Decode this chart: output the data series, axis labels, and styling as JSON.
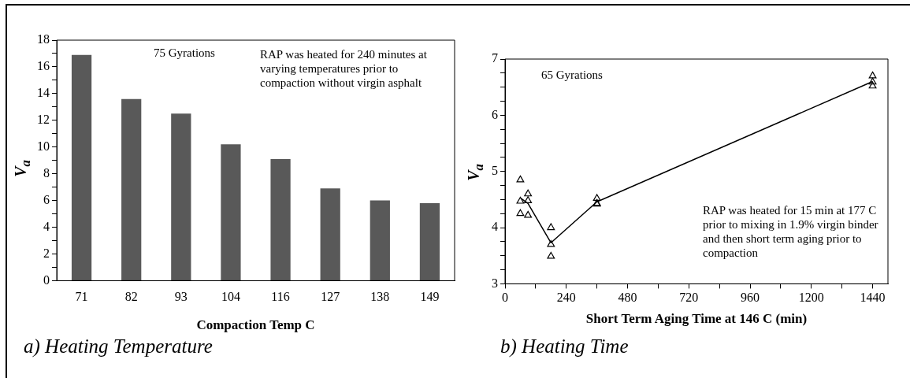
{
  "chart_data": [
    {
      "type": "bar",
      "title": "a) Heating Temperature",
      "xlabel": "Compaction Temp C",
      "ylabel": "V$_{a}$",
      "categories": [
        "71",
        "82",
        "93",
        "104",
        "116",
        "127",
        "138",
        "149"
      ],
      "values": [
        16.9,
        13.6,
        12.5,
        10.2,
        9.1,
        6.9,
        6.0,
        5.8
      ],
      "color": "#595959",
      "ylim": [
        0,
        18
      ],
      "yticks": [
        0,
        {
          "value": 1,
          "label": null
        },
        2,
        {
          "value": 3,
          "label": null
        },
        4,
        {
          "value": 5,
          "label": null
        },
        6,
        {
          "value": 7,
          "label": null
        },
        8,
        {
          "value": 9,
          "label": null
        },
        10,
        {
          "value": 11,
          "label": null
        },
        12,
        {
          "value": 13,
          "label": null
        },
        14,
        {
          "value": 15,
          "label": null
        },
        16,
        {
          "value": 17,
          "label": null
        },
        18
      ],
      "annotations": [
        "75 Gyrations",
        "RAP was heated for 240 minutes at varying temperatures prior to compaction without virgin asphalt"
      ]
    },
    {
      "type": "scatter",
      "title": "b) Heating Time",
      "xlabel": "Short Term Aging Time at 146 C (min)",
      "ylabel": "V$_{a}$",
      "marker": "triangle",
      "series": [
        {
          "color": "#000000",
          "x": [
            60,
            60,
            60,
            90,
            90,
            90,
            180,
            180,
            180,
            360,
            360,
            360,
            1440,
            1440,
            1440
          ],
          "values": [
            4.85,
            4.47,
            4.25,
            4.6,
            4.48,
            4.22,
            4.0,
            3.7,
            3.49,
            4.52,
            4.43,
            4.42,
            6.7,
            6.59,
            6.52
          ]
        },
        {
          "type": "line",
          "color": "#000000",
          "marker": "none",
          "line_style": "solid",
          "x": [
            60,
            90,
            180,
            360,
            1440
          ],
          "values": [
            4.53,
            4.43,
            3.73,
            4.46,
            6.6
          ]
        }
      ],
      "xlim": [
        0,
        1500
      ],
      "xticks": [
        0,
        {
          "value": 120,
          "label": null
        },
        240,
        {
          "value": 360,
          "label": null
        },
        480,
        {
          "value": 600,
          "label": null
        },
        720,
        {
          "value": 840,
          "label": null
        },
        960,
        {
          "value": 1080,
          "label": null
        },
        1200,
        {
          "value": 1320,
          "label": null
        },
        1440
      ],
      "ylim": [
        3,
        7
      ],
      "yticks": [
        3,
        {
          "value": 3.25,
          "label": null
        },
        {
          "value": 3.5,
          "label": null
        },
        {
          "value": 3.75,
          "label": null
        },
        4,
        {
          "value": 4.25,
          "label": null
        },
        {
          "value": 4.5,
          "label": null
        },
        {
          "value": 4.75,
          "label": null
        },
        5,
        {
          "value": 5.25,
          "label": null
        },
        {
          "value": 5.5,
          "label": null
        },
        {
          "value": 5.75,
          "label": null
        },
        6,
        {
          "value": 6.25,
          "label": null
        },
        {
          "value": 6.5,
          "label": null
        },
        {
          "value": 6.75,
          "label": null
        },
        7
      ],
      "annotations": [
        "65 Gyrations",
        "RAP was heated for 15 min at 177 C prior to mixing in 1.9% virgin binder and then short term aging prior to compaction"
      ]
    }
  ]
}
